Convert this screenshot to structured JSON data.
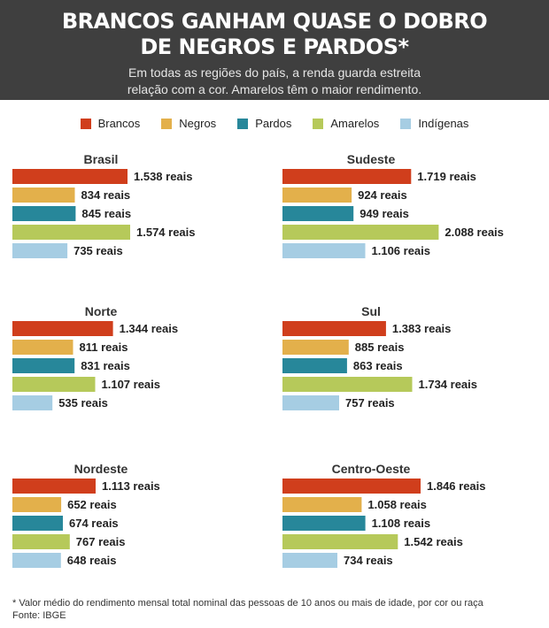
{
  "header": {
    "title": "BRANCOS GANHAM QUASE O DOBRO\nDE NEGROS E PARDOS*",
    "subtitle": "Em todas as regiões do país, a renda guarda estreita\nrelação com a cor. Amarelos têm o maior rendimento."
  },
  "legend": [
    {
      "label": "Brancos",
      "color": "#d03e1c"
    },
    {
      "label": "Negros",
      "color": "#e3b04b"
    },
    {
      "label": "Pardos",
      "color": "#27879a"
    },
    {
      "label": "Amarelos",
      "color": "#b6c95a"
    },
    {
      "label": "Indígenas",
      "color": "#a6cde3"
    }
  ],
  "chart_data": [
    {
      "type": "bar",
      "title": "Brasil",
      "categories": [
        "Brancos",
        "Negros",
        "Pardos",
        "Amarelos",
        "Indígenas"
      ],
      "values": [
        1538,
        834,
        845,
        1574,
        735
      ],
      "labels": [
        "1.538 reais",
        "834 reais",
        "845 reais",
        "1.574 reais",
        "735 reais"
      ]
    },
    {
      "type": "bar",
      "title": "Sudeste",
      "categories": [
        "Brancos",
        "Negros",
        "Pardos",
        "Amarelos",
        "Indígenas"
      ],
      "values": [
        1719,
        924,
        949,
        2088,
        1106
      ],
      "labels": [
        "1.719 reais",
        "924 reais",
        "949 reais",
        "2.088 reais",
        "1.106 reais"
      ]
    },
    {
      "type": "bar",
      "title": "Norte",
      "categories": [
        "Brancos",
        "Negros",
        "Pardos",
        "Amarelos",
        "Indígenas"
      ],
      "values": [
        1344,
        811,
        831,
        1107,
        535
      ],
      "labels": [
        "1.344 reais",
        "811 reais",
        "831 reais",
        "1.107 reais",
        "535 reais"
      ]
    },
    {
      "type": "bar",
      "title": "Sul",
      "categories": [
        "Brancos",
        "Negros",
        "Pardos",
        "Amarelos",
        "Indígenas"
      ],
      "values": [
        1383,
        885,
        863,
        1734,
        757
      ],
      "labels": [
        "1.383 reais",
        "885 reais",
        "863 reais",
        "1.734 reais",
        "757 reais"
      ]
    },
    {
      "type": "bar",
      "title": "Nordeste",
      "categories": [
        "Brancos",
        "Negros",
        "Pardos",
        "Amarelos",
        "Indígenas"
      ],
      "values": [
        1113,
        652,
        674,
        767,
        648
      ],
      "labels": [
        "1.113 reais",
        "652 reais",
        "674 reais",
        "767 reais",
        "648 reais"
      ]
    },
    {
      "type": "bar",
      "title": "Centro-Oeste",
      "categories": [
        "Brancos",
        "Negros",
        "Pardos",
        "Amarelos",
        "Indígenas"
      ],
      "values": [
        1846,
        1058,
        1108,
        1542,
        734
      ],
      "labels": [
        "1.846 reais",
        "1.058 reais",
        "1.108 reais",
        "1.542 reais",
        "734 reais"
      ]
    }
  ],
  "footnote": {
    "note": "* Valor médio do rendimento mensal total nominal das pessoas de 10 anos ou mais de idade, por cor ou raça",
    "source": "Fonte: IBGE"
  }
}
